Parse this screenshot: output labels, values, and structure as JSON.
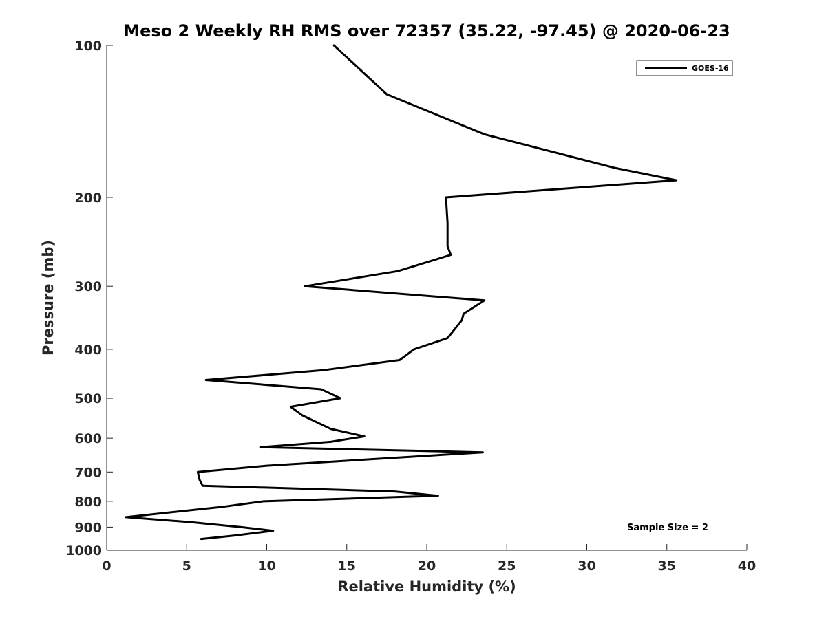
{
  "chart_data": {
    "type": "line",
    "title": "Meso 2 Weekly RH RMS over 72357 (35.22, -97.45) @ 2020-06-23",
    "xlabel": "Relative Humidity (%)",
    "ylabel": "Pressure (mb)",
    "xlim": [
      0,
      40
    ],
    "ylim": [
      100,
      1000
    ],
    "y_scale": "log",
    "y_reversed": true,
    "grid": false,
    "legend_position": "top-right",
    "x_ticks": [
      0,
      5,
      10,
      15,
      20,
      25,
      30,
      35,
      40
    ],
    "y_ticks": [
      100,
      200,
      300,
      400,
      500,
      600,
      700,
      800,
      900,
      1000
    ],
    "series": [
      {
        "name": "GOES-16",
        "color": "#000000",
        "points": [
          [
            14.2,
            100
          ],
          [
            17.5,
            125
          ],
          [
            23.6,
            150
          ],
          [
            31.8,
            175
          ],
          [
            35.6,
            185
          ],
          [
            21.2,
            200
          ],
          [
            21.3,
            225
          ],
          [
            21.3,
            250
          ],
          [
            21.5,
            260
          ],
          [
            18.2,
            280
          ],
          [
            12.4,
            300
          ],
          [
            23.6,
            320
          ],
          [
            22.3,
            340
          ],
          [
            22.2,
            350
          ],
          [
            21.3,
            380
          ],
          [
            19.2,
            400
          ],
          [
            18.3,
            420
          ],
          [
            13.5,
            440
          ],
          [
            6.2,
            460
          ],
          [
            13.4,
            480
          ],
          [
            14.6,
            500
          ],
          [
            11.5,
            520
          ],
          [
            12.2,
            540
          ],
          [
            14.0,
            575
          ],
          [
            16.1,
            595
          ],
          [
            14.0,
            610
          ],
          [
            9.6,
            625
          ],
          [
            23.5,
            640
          ],
          [
            10.0,
            680
          ],
          [
            5.7,
            700
          ],
          [
            5.8,
            725
          ],
          [
            6.0,
            745
          ],
          [
            18.0,
            765
          ],
          [
            20.7,
            780
          ],
          [
            9.8,
            800
          ],
          [
            7.3,
            820
          ],
          [
            1.2,
            860
          ],
          [
            5.3,
            880
          ],
          [
            8.4,
            900
          ],
          [
            10.4,
            915
          ],
          [
            8.0,
            935
          ],
          [
            5.9,
            950
          ]
        ]
      }
    ],
    "annotation": "Sample Size = 2"
  }
}
